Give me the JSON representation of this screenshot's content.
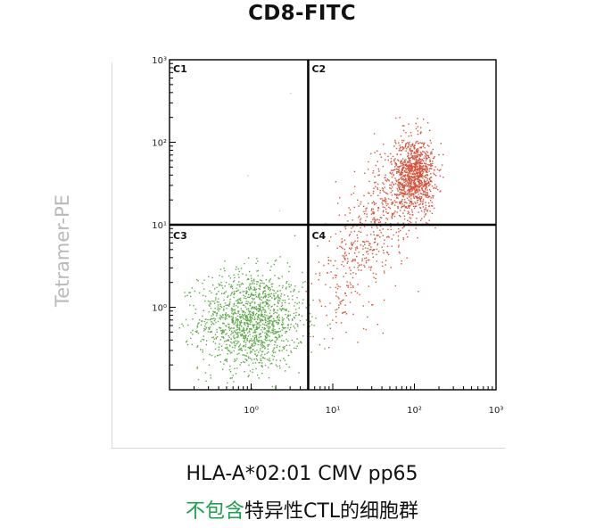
{
  "title": "CD8-FITC",
  "y_axis_label": "Tetramer-PE",
  "caption": {
    "line1": "HLA-A*02:01 CMV pp65",
    "line2_highlight": "不包含",
    "line2_rest": "特异性CTL的细胞群"
  },
  "colors": {
    "negative_population": "#5aa845",
    "positive_population": "#d4523a",
    "axes": "#000000",
    "highlight_text": "#1aa04a"
  },
  "chart_data": {
    "type": "scatter",
    "scale": "log",
    "title": "CD8-FITC",
    "ylabel": "Tetramer-PE",
    "xlim": [
      0.1,
      1000
    ],
    "ylim": [
      0.1,
      1000
    ],
    "x_ticks": [
      "10⁰",
      "10¹",
      "10²",
      "10³"
    ],
    "y_ticks": [
      "10⁰",
      "10¹",
      "10²",
      "10³"
    ],
    "gates": {
      "x": 5,
      "y": 10
    },
    "quadrants": [
      "C1",
      "C2",
      "C3",
      "C4"
    ],
    "populations": [
      {
        "quadrant": "C3",
        "center_x": 1.0,
        "center_y": 0.7,
        "spread_log10": [
          0.32,
          0.3
        ],
        "count": 1400,
        "color": "#5aa845"
      },
      {
        "quadrant": "C2",
        "center_x": 100,
        "center_y": 40,
        "spread_log10": [
          0.12,
          0.22
        ],
        "count": 900,
        "color": "#d4523a"
      },
      {
        "quadrant": "C4/C2",
        "diagonal_from": [
          8,
          1
        ],
        "diagonal_to": [
          100,
          60
        ],
        "count": 700,
        "color": "#d4523a"
      }
    ],
    "grid": false,
    "legend": "none"
  }
}
